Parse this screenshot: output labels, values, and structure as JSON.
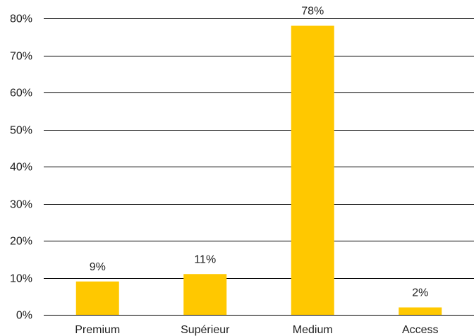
{
  "chart_data": {
    "type": "bar",
    "categories": [
      "Premium",
      "Supérieur",
      "Medium",
      "Access"
    ],
    "values": [
      9,
      11,
      78,
      2
    ],
    "value_format": "{v}%",
    "title": "",
    "xlabel": "",
    "ylabel": "",
    "ylim": [
      0,
      80
    ],
    "yticks": [
      0,
      10,
      20,
      30,
      40,
      50,
      60,
      70,
      80
    ],
    "grid": true,
    "bar_color": "#FFC800",
    "data_labels": true
  }
}
